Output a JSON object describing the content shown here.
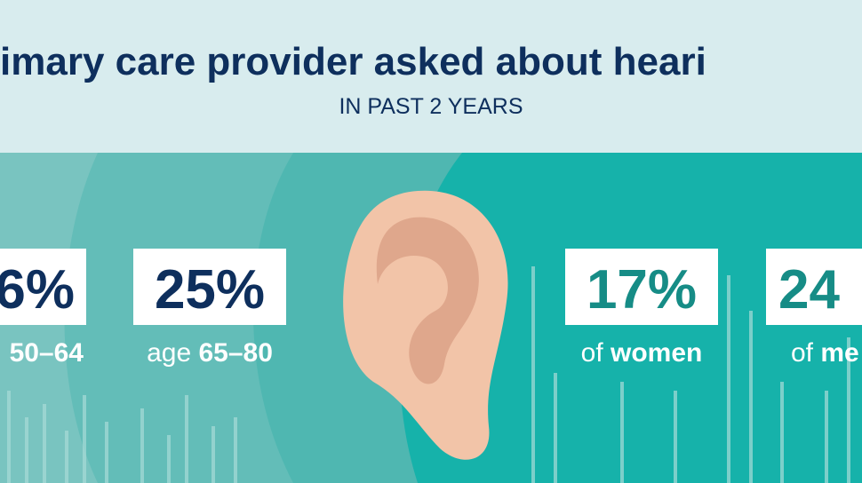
{
  "header": {
    "title": "imary care provider asked about heari",
    "subtitle": "IN PAST 2 YEARS"
  },
  "stats": [
    {
      "value": "6%",
      "label_bold": "50–64"
    },
    {
      "value": "25%",
      "label_prefix": "age ",
      "label_bold": "65–80"
    },
    {
      "value": "17%",
      "label_prefix": "of ",
      "label_bold": "women"
    },
    {
      "value": "24",
      "label_prefix": "of ",
      "label_bold": "me"
    }
  ]
}
